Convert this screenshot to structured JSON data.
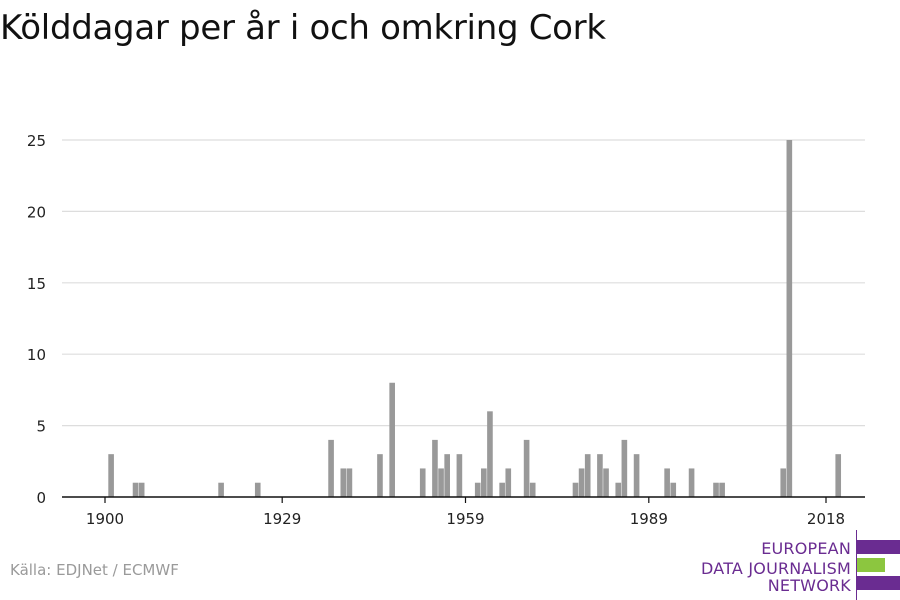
{
  "title": "Kölddagar per år i och omkring Cork",
  "source": "Källa: EDJNet / ECMWF",
  "logo": {
    "lines": [
      "EUROPEAN",
      "DATA JOURNALISM",
      "NETWORK"
    ],
    "colors": {
      "purple": "#6a2c91",
      "green": "#8cc63f"
    }
  },
  "chart_data": {
    "type": "bar",
    "title": "Kölddagar per år i och omkring Cork",
    "xlabel": "",
    "ylabel": "",
    "xlim": [
      1891,
      2026
    ],
    "ylim": [
      0,
      26
    ],
    "x_ticks": [
      1900,
      1929,
      1959,
      1989,
      2018
    ],
    "y_ticks": [
      0,
      5,
      10,
      15,
      20,
      25
    ],
    "grid": "horizontal",
    "bar_color": "#999999",
    "x": [
      1901,
      1905,
      1906,
      1919,
      1925,
      1937,
      1939,
      1940,
      1945,
      1947,
      1952,
      1954,
      1955,
      1956,
      1958,
      1961,
      1962,
      1963,
      1965,
      1966,
      1969,
      1970,
      1977,
      1978,
      1979,
      1981,
      1982,
      1984,
      1985,
      1987,
      1992,
      1993,
      1996,
      2000,
      2001,
      2011,
      2012,
      2020
    ],
    "values": [
      3,
      1,
      1,
      1,
      1,
      4,
      2,
      2,
      3,
      8,
      2,
      4,
      2,
      3,
      3,
      1,
      2,
      6,
      1,
      2,
      4,
      1,
      1,
      2,
      3,
      3,
      2,
      1,
      4,
      3,
      2,
      1,
      2,
      1,
      1,
      2,
      25,
      3
    ]
  }
}
